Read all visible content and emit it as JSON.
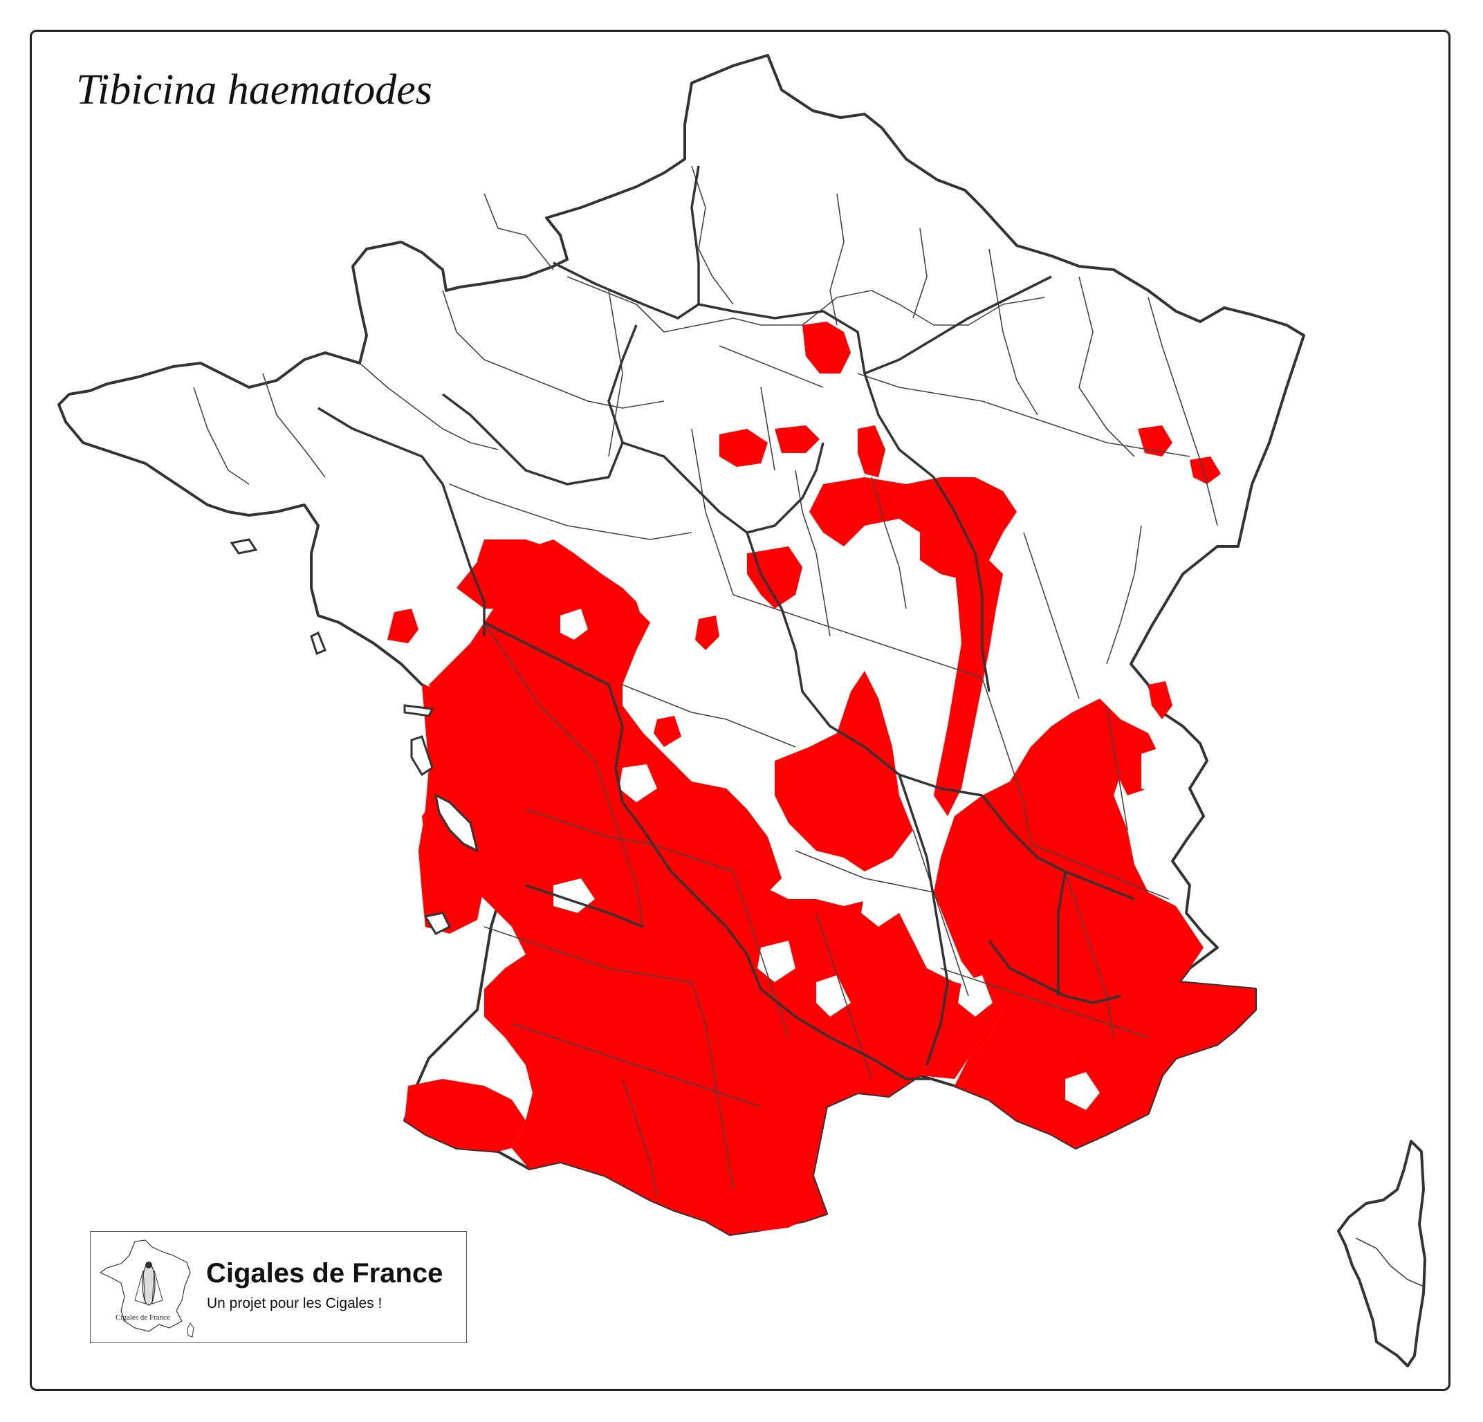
{
  "title": "Tibicina haematodes",
  "colors": {
    "presence": "#ff0000",
    "background": "#ffffff",
    "border": "#333333"
  },
  "logo": {
    "title": "Cigales de France",
    "subtitle": "Un projet pour les Cigales !",
    "mini_caption": "Cigales de France",
    "icon": "cicada-icon"
  }
}
